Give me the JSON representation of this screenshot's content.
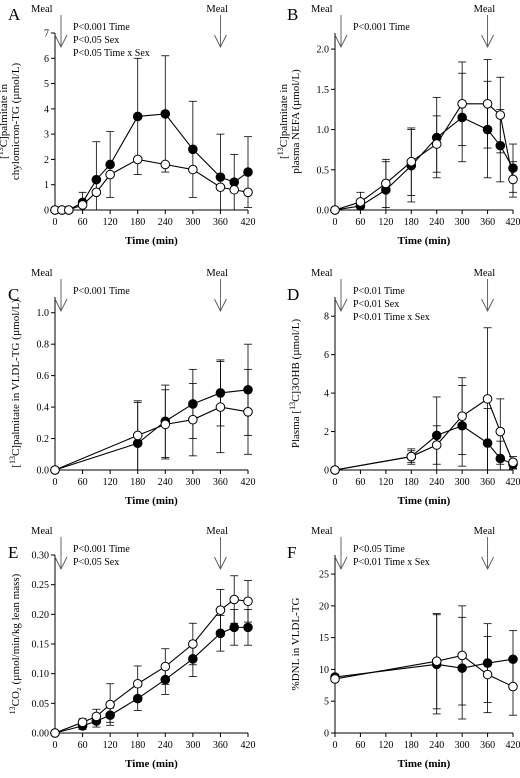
{
  "figure": {
    "meal_label": "Meal",
    "xlabel": "Time (min)"
  },
  "chart_data": [
    {
      "panel": "A",
      "type": "line",
      "ylabel": "[13C]palmitate in chylomicron-TG (µmol/L)",
      "ylabel_lines": [
        {
          "pre": "[",
          "sup": "13",
          "post": "C]palmitate in"
        },
        {
          "pre": "chylomicron-TG (µmol/L)",
          "sup": "",
          "post": ""
        }
      ],
      "ylim": [
        0,
        7
      ],
      "yticks": [
        0,
        1,
        2,
        3,
        4,
        5,
        6,
        7
      ],
      "ytick_labels": [
        "0",
        "1",
        "2",
        "3",
        "4",
        "5",
        "6",
        "7"
      ],
      "xlim": [
        0,
        420
      ],
      "xticks": [
        0,
        60,
        120,
        180,
        240,
        300,
        360,
        420
      ],
      "meals": [
        0,
        360
      ],
      "stats": [
        "P<0.001 Time",
        "P<0.05 Sex",
        "P<0.05 Time x Sex"
      ],
      "series": [
        {
          "marker": "filled",
          "x": [
            0,
            15,
            30,
            60,
            90,
            120,
            180,
            240,
            300,
            360,
            390,
            420
          ],
          "y": [
            0,
            0,
            0,
            0.3,
            1.2,
            1.8,
            3.7,
            3.8,
            2.4,
            1.3,
            1.1,
            1.5
          ],
          "err": [
            0,
            0,
            0,
            0.4,
            1.5,
            1.3,
            2.3,
            2.3,
            1.9,
            1.7,
            1.1,
            1.4
          ]
        },
        {
          "marker": "open",
          "x": [
            0,
            15,
            30,
            60,
            90,
            120,
            180,
            240,
            300,
            360,
            390,
            420
          ],
          "y": [
            0,
            0,
            0,
            0.2,
            0.7,
            1.4,
            2.0,
            1.8,
            1.6,
            0.9,
            0.8,
            0.7
          ],
          "err": [
            0,
            0,
            0,
            0,
            0,
            0,
            0,
            0,
            0,
            0,
            0,
            0
          ]
        }
      ]
    },
    {
      "panel": "B",
      "type": "line",
      "ylabel_lines": [
        {
          "pre": "[",
          "sup": "13",
          "post": "C]palmitate in"
        },
        {
          "pre": "plasma NEFA (µmol/L)",
          "sup": "",
          "post": ""
        }
      ],
      "ylim": [
        0,
        2.2
      ],
      "yticks": [
        0,
        0.5,
        1.0,
        1.5,
        2.0
      ],
      "ytick_labels": [
        "0.0",
        "0.5",
        "1.0",
        "1.5",
        "2.0"
      ],
      "xlim": [
        0,
        420
      ],
      "xticks": [
        0,
        60,
        120,
        180,
        240,
        300,
        360,
        420
      ],
      "meals": [
        0,
        360
      ],
      "stats": [
        "P<0.001 Time"
      ],
      "series": [
        {
          "marker": "filled",
          "x": [
            0,
            60,
            120,
            180,
            240,
            300,
            360,
            390,
            420
          ],
          "y": [
            0,
            0.05,
            0.25,
            0.55,
            0.9,
            1.15,
            1.0,
            0.8,
            0.52
          ],
          "err": [
            0,
            0.05,
            0.35,
            0.45,
            0.5,
            0.55,
            0.6,
            0.45,
            0.3
          ]
        },
        {
          "marker": "open",
          "x": [
            0,
            60,
            120,
            180,
            240,
            300,
            360,
            390,
            420
          ],
          "y": [
            0,
            0.1,
            0.33,
            0.6,
            0.82,
            1.32,
            1.32,
            1.18,
            0.38
          ],
          "err": [
            0,
            0.12,
            0.3,
            0.42,
            0.35,
            0.52,
            0.55,
            0.47,
            0.22
          ]
        }
      ]
    },
    {
      "panel": "C",
      "type": "line",
      "ylabel_lines": [
        {
          "pre": "[",
          "sup": "13",
          "post": "C]palmitate in VLDL-TG (µmol/L)"
        }
      ],
      "ylim": [
        0,
        1.1
      ],
      "yticks": [
        0,
        0.2,
        0.4,
        0.6,
        0.8,
        1.0
      ],
      "ytick_labels": [
        "0.0",
        "0.2",
        "0.4",
        "0.6",
        "0.8",
        "1.0"
      ],
      "xlim": [
        0,
        420
      ],
      "xticks": [
        0,
        60,
        120,
        180,
        240,
        300,
        360,
        420
      ],
      "meals": [
        0,
        360
      ],
      "stats": [
        "P<0.001 Time"
      ],
      "series": [
        {
          "marker": "filled",
          "x": [
            0,
            180,
            240,
            300,
            360,
            420
          ],
          "y": [
            0,
            0.17,
            0.31,
            0.42,
            0.49,
            0.51
          ],
          "err": [
            0,
            0.26,
            0.23,
            0.22,
            0.21,
            0.29
          ]
        },
        {
          "marker": "open",
          "x": [
            0,
            180,
            240,
            300,
            360,
            420
          ],
          "y": [
            0,
            0.22,
            0.29,
            0.32,
            0.4,
            0.37
          ],
          "err": [
            0,
            0.22,
            0.22,
            0.23,
            0.29,
            0.27
          ]
        }
      ]
    },
    {
      "panel": "D",
      "type": "line",
      "ylabel_lines": [
        {
          "pre": "Plasma [",
          "sup": "13",
          "post": "C]3OHB (µmol/L)"
        }
      ],
      "ylim": [
        0,
        9
      ],
      "yticks": [
        0,
        2,
        4,
        6,
        8
      ],
      "ytick_labels": [
        "0",
        "2",
        "4",
        "6",
        "8"
      ],
      "xlim": [
        0,
        420
      ],
      "xticks": [
        0,
        60,
        120,
        180,
        240,
        300,
        360,
        420
      ],
      "meals": [
        0,
        360
      ],
      "stats": [
        "P<0.01 Time",
        "P<0.01 Sex",
        "P<0.01 Time x Sex"
      ],
      "series": [
        {
          "marker": "filled",
          "x": [
            0,
            180,
            240,
            300,
            360,
            390,
            420
          ],
          "y": [
            0,
            0.7,
            1.8,
            2.3,
            1.4,
            0.6,
            0.3
          ],
          "err": [
            0,
            0.4,
            2.0,
            2.1,
            1.8,
            0.9,
            0.25
          ]
        },
        {
          "marker": "open",
          "x": [
            0,
            180,
            240,
            300,
            360,
            390,
            420
          ],
          "y": [
            0,
            0.7,
            1.3,
            2.8,
            3.7,
            2.0,
            0.4
          ],
          "err": [
            0,
            0.3,
            1.0,
            2.0,
            3.7,
            1.7,
            0.3
          ]
        }
      ]
    },
    {
      "panel": "E",
      "type": "line",
      "ylabel_lines": [
        {
          "pre": "",
          "sup": "13",
          "post": "CO₂ (µmol/min/kg lean mass)"
        }
      ],
      "ylim": [
        0,
        0.3
      ],
      "yticks": [
        0,
        0.05,
        0.1,
        0.15,
        0.2,
        0.25,
        0.3
      ],
      "ytick_labels": [
        "0.00",
        "0.05",
        "0.10",
        "0.15",
        "0.20",
        "0.25",
        "0.30"
      ],
      "xlim": [
        0,
        420
      ],
      "xticks": [
        0,
        60,
        120,
        180,
        240,
        300,
        360,
        420
      ],
      "meals": [
        0,
        360
      ],
      "stats": [
        "P<0.001 Time",
        "P<0.05 Sex"
      ],
      "series": [
        {
          "marker": "filled",
          "x": [
            0,
            60,
            90,
            120,
            180,
            240,
            300,
            360,
            390,
            420
          ],
          "y": [
            0,
            0.012,
            0.02,
            0.03,
            0.058,
            0.09,
            0.125,
            0.168,
            0.178,
            0.178
          ],
          "err": [
            0,
            0.006,
            0.01,
            0.012,
            0.02,
            0.025,
            0.03,
            0.03,
            0.03,
            0.03
          ]
        },
        {
          "marker": "open",
          "x": [
            0,
            60,
            90,
            120,
            180,
            240,
            300,
            360,
            390,
            420
          ],
          "y": [
            0,
            0.018,
            0.028,
            0.048,
            0.083,
            0.112,
            0.15,
            0.207,
            0.225,
            0.222
          ],
          "err": [
            0,
            0.006,
            0.012,
            0.035,
            0.03,
            0.03,
            0.035,
            0.035,
            0.04,
            0.035
          ]
        }
      ]
    },
    {
      "panel": "F",
      "type": "line",
      "ylabel_lines": [
        {
          "pre": "%DNL in VLDL-TG",
          "sup": "",
          "post": ""
        }
      ],
      "ylim": [
        0,
        28
      ],
      "yticks": [
        0,
        5,
        10,
        15,
        20,
        25
      ],
      "ytick_labels": [
        "0",
        "5",
        "10",
        "15",
        "20",
        "25"
      ],
      "xlim": [
        0,
        420
      ],
      "xticks": [
        0,
        60,
        120,
        180,
        240,
        300,
        360,
        420
      ],
      "meals": [
        0,
        360
      ],
      "stats": [
        "P<0.05 Time",
        "P<0.01 Time x Sex"
      ],
      "series": [
        {
          "marker": "filled",
          "x": [
            0,
            240,
            300,
            360,
            420
          ],
          "y": [
            8.8,
            10.8,
            10.2,
            11.0,
            11.6
          ],
          "err": [
            0,
            7.8,
            8.0,
            6.2,
            4.5
          ]
        },
        {
          "marker": "open",
          "x": [
            0,
            240,
            300,
            360,
            420
          ],
          "y": [
            8.5,
            11.3,
            12.2,
            9.2,
            7.3
          ],
          "err": [
            0,
            7.5,
            7.8,
            6.0,
            4.5
          ]
        }
      ]
    }
  ]
}
